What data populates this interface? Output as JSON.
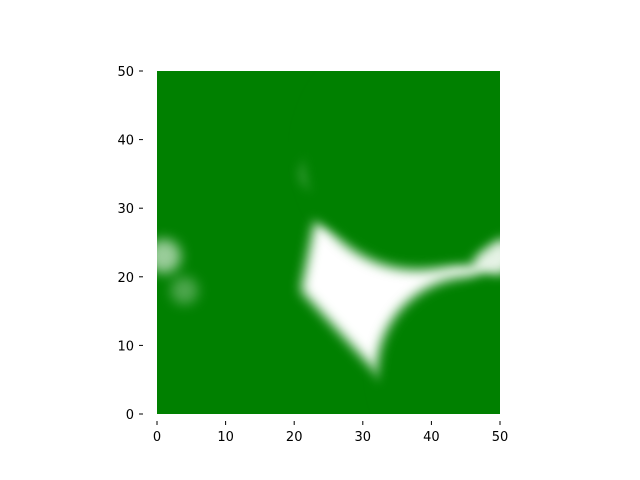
{
  "chart_data": {
    "type": "heatmap",
    "title": "",
    "xlabel": "",
    "ylabel": "",
    "xlim": [
      0,
      50
    ],
    "ylim": [
      0,
      50
    ],
    "xticks": [
      "0",
      "10",
      "20",
      "30",
      "40",
      "50"
    ],
    "yticks": [
      "0",
      "10",
      "20",
      "30",
      "40",
      "50"
    ],
    "colormap": {
      "low": "#ffffff",
      "high": "#008000"
    },
    "value_range": [
      0,
      1
    ],
    "grid": false,
    "legend": "none",
    "field": {
      "grid_size": 51,
      "description_of_values": "0 = white, 1 = green",
      "white_regions": [
        {
          "type": "curved_quad",
          "vertices": [
            [
              23,
              28
            ],
            [
              21,
              18
            ],
            [
              33,
              5
            ],
            [
              48,
              21
            ]
          ],
          "intensity": 1.0
        },
        {
          "type": "soft_blob",
          "center": [
            49,
            23
          ],
          "radius": 3,
          "intensity": 0.9
        },
        {
          "type": "soft_blob",
          "center": [
            1,
            23
          ],
          "radius": 2.5,
          "intensity": 0.6
        },
        {
          "type": "soft_blob",
          "center": [
            4,
            18
          ],
          "radius": 2,
          "intensity": 0.3
        },
        {
          "type": "soft_blob",
          "center": [
            23,
            35
          ],
          "radius": 2,
          "intensity": 0.35
        }
      ],
      "green_circles": [
        {
          "center": [
            38,
            38
          ],
          "radius": 17
        },
        {
          "center": [
            46,
            6
          ],
          "radius": 14
        }
      ]
    }
  }
}
